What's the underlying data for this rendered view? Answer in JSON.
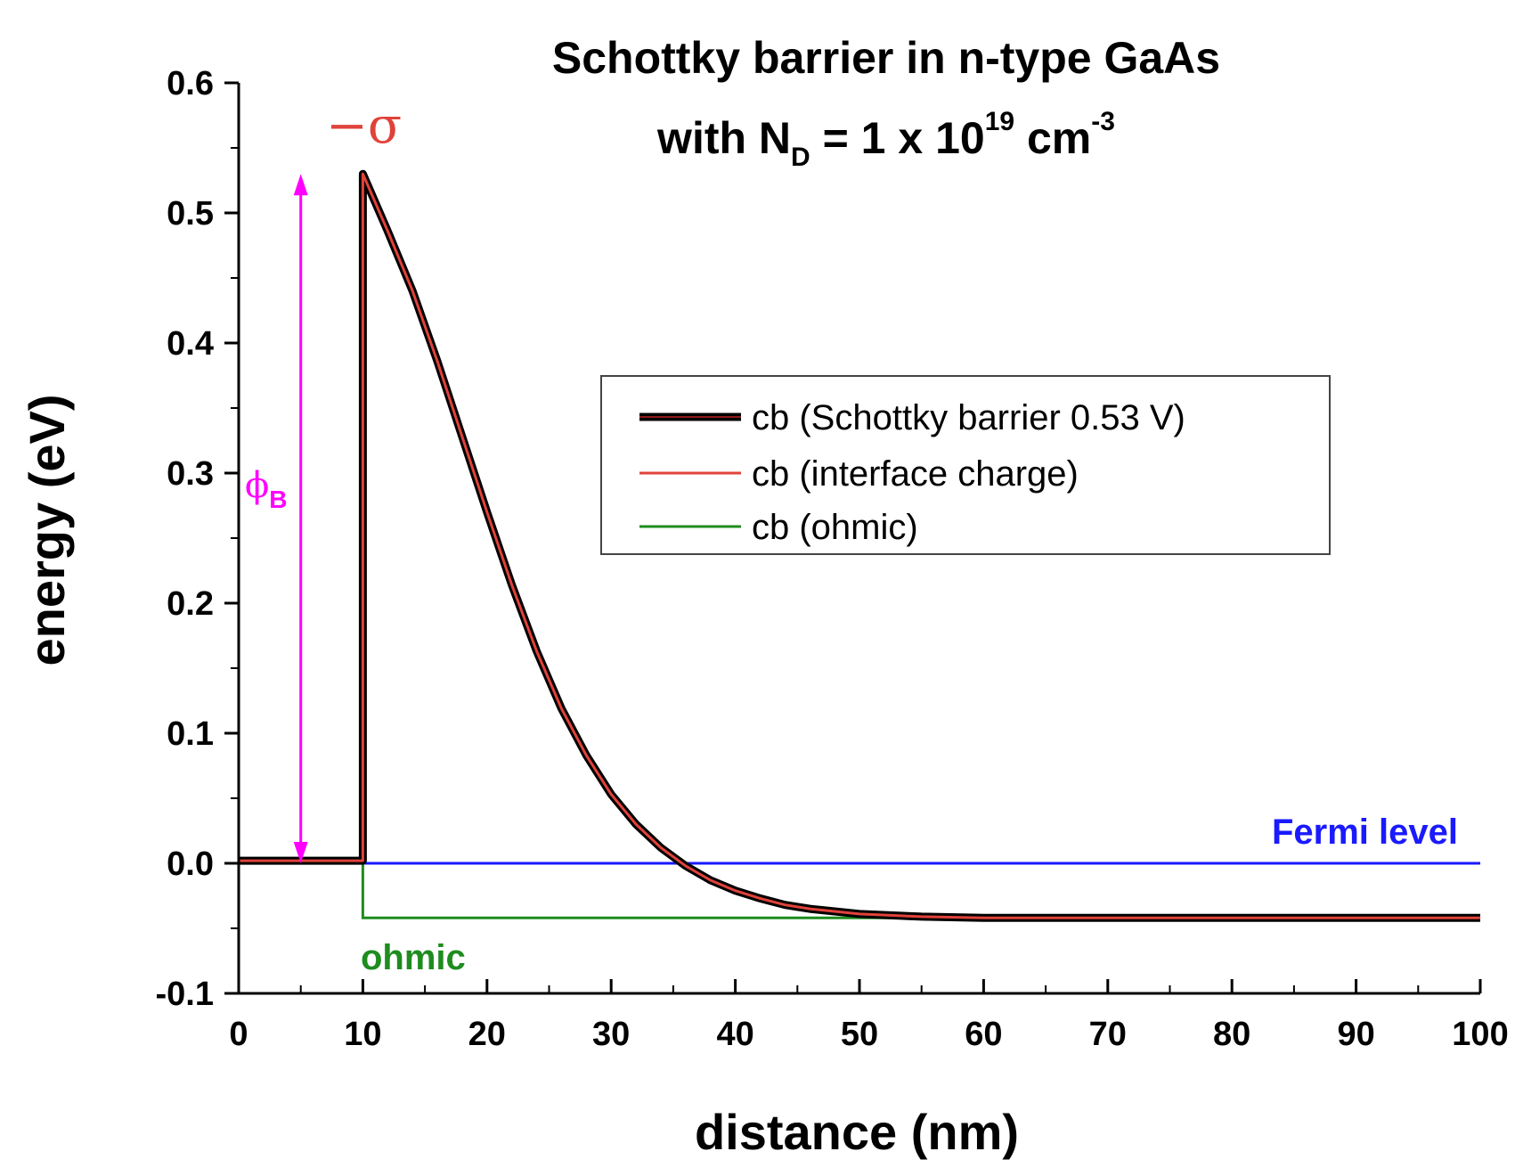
{
  "chart_data": {
    "type": "line",
    "title": {
      "line1": "Schottky barrier in n-type GaAs",
      "line2_prefix": "with N",
      "line2_sub": "D",
      "line2_mid": " = 1 x 10",
      "line2_sup": "19",
      "line2_unit": " cm",
      "line2_unit_sup": "-3"
    },
    "xlabel": "distance (nm)",
    "ylabel": "energy (eV)",
    "xlim": [
      0,
      100
    ],
    "ylim": [
      -0.1,
      0.6
    ],
    "x_ticks": [
      "0",
      "10",
      "20",
      "30",
      "40",
      "50",
      "60",
      "70",
      "80",
      "90",
      "100"
    ],
    "y_ticks": [
      "-0.1",
      "0.0",
      "0.1",
      "0.2",
      "0.3",
      "0.4",
      "0.5",
      "0.6"
    ],
    "legend_position": "right-center",
    "series": [
      {
        "name": "cb (Schottky barrier 0.53 V)",
        "color": "#000000",
        "x": [
          0,
          10,
          10,
          12,
          14,
          16,
          18,
          20,
          22,
          24,
          26,
          28,
          30,
          32,
          34,
          36,
          38,
          40,
          42,
          44,
          46,
          48,
          50,
          55,
          60,
          70,
          80,
          90,
          100
        ],
        "y": [
          0.002,
          0.002,
          0.53,
          0.486,
          0.44,
          0.386,
          0.328,
          0.27,
          0.214,
          0.163,
          0.119,
          0.083,
          0.053,
          0.03,
          0.012,
          -0.002,
          -0.013,
          -0.021,
          -0.027,
          -0.032,
          -0.035,
          -0.037,
          -0.039,
          -0.041,
          -0.042,
          -0.042,
          -0.042,
          -0.042,
          -0.042
        ]
      },
      {
        "name": "cb (interface charge)",
        "color": "#e0423a",
        "x": [
          0,
          10,
          10,
          12,
          14,
          16,
          18,
          20,
          22,
          24,
          26,
          28,
          30,
          32,
          34,
          36,
          38,
          40,
          42,
          44,
          46,
          48,
          50,
          55,
          60,
          70,
          80,
          90,
          100
        ],
        "y": [
          0.002,
          0.002,
          0.53,
          0.486,
          0.44,
          0.386,
          0.328,
          0.27,
          0.214,
          0.163,
          0.119,
          0.083,
          0.053,
          0.03,
          0.012,
          -0.002,
          -0.013,
          -0.021,
          -0.027,
          -0.032,
          -0.035,
          -0.037,
          -0.039,
          -0.041,
          -0.042,
          -0.042,
          -0.042,
          -0.042,
          -0.042
        ]
      },
      {
        "name": "cb (ohmic)",
        "color": "#1e8c1e",
        "x": [
          0,
          10,
          10,
          100
        ],
        "y": [
          0.0,
          0.0,
          -0.042,
          -0.042
        ]
      },
      {
        "name": "Fermi level",
        "color": "#1a1aff",
        "x": [
          10,
          100
        ],
        "y": [
          0.0,
          0.0
        ]
      }
    ],
    "annotations": {
      "fermi_label": "Fermi level",
      "fermi_color": "#1a1aff",
      "ohmic_label": "ohmic",
      "ohmic_color": "#1e8c1e",
      "sigma_label": "−σ",
      "sigma_color": "#e0423a",
      "phi_label": "ϕ",
      "phi_sub": "B",
      "phi_color": "#ff00ff",
      "phi_arrow": {
        "x": 5,
        "y_from": 0.0,
        "y_to": 0.53
      }
    },
    "grid": false
  }
}
